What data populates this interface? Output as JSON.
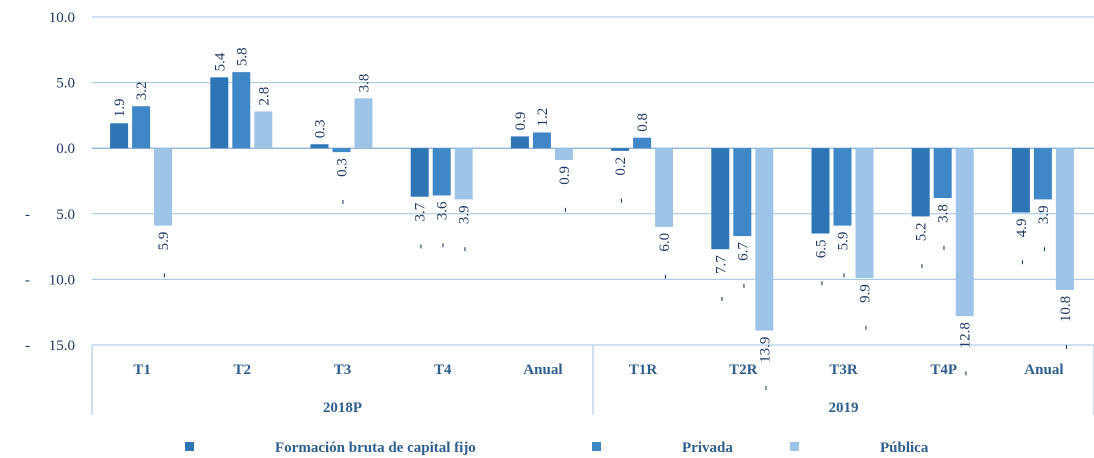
{
  "chart_data": {
    "type": "bar",
    "categories": [
      "T1",
      "T2",
      "T3",
      "T4",
      "Anual",
      "T1R",
      "T2R",
      "T3R",
      "T4P",
      "Anual"
    ],
    "groups": [
      {
        "name": "2018P",
        "size": 5
      },
      {
        "name": "2019",
        "size": 5
      }
    ],
    "series": [
      {
        "name": "Formación bruta de capital fijo",
        "color": "#2e75b6",
        "values": [
          1.9,
          5.4,
          0.3,
          -3.7,
          0.9,
          -0.2,
          -7.7,
          -6.5,
          -5.2,
          -4.9
        ],
        "value_labels": [
          "1.9",
          "5.4",
          "0.3",
          "-      3.7",
          "0.9",
          "-      0.2",
          "-      7.7",
          "-      6.5",
          "-      5.2",
          "-      4.9"
        ]
      },
      {
        "name": "Privada",
        "color": "#3f87c7",
        "values": [
          3.2,
          5.8,
          -0.3,
          -3.6,
          1.2,
          0.8,
          -6.7,
          -5.9,
          -3.8,
          -3.9
        ],
        "value_labels": [
          "3.2",
          "5.8",
          "-      0.3",
          "-      3.6",
          "1.2",
          "0.8",
          "-      6.7",
          "-      5.9",
          "-      3.8",
          "-      3.9"
        ]
      },
      {
        "name": "Pública",
        "color": "#9dc3e6",
        "values": [
          -5.9,
          2.8,
          3.8,
          -3.9,
          -0.9,
          -6.0,
          -13.9,
          -9.9,
          -12.8,
          -10.8
        ],
        "value_labels": [
          "-      5.9",
          "2.8",
          "3.8",
          "-      3.9",
          "-      0.9",
          "-      6.0",
          "-      13.9",
          "-      9.9",
          "-      12.8",
          "-      10.8"
        ]
      }
    ],
    "ylim": [
      -15,
      10
    ],
    "yticks": [
      {
        "value": -15,
        "label": "-     15.0"
      },
      {
        "value": -10,
        "label": "-     10.0"
      },
      {
        "value": -5,
        "label": "-       5.0"
      },
      {
        "value": 0,
        "label": "0.0"
      },
      {
        "value": 5,
        "label": "5.0"
      },
      {
        "value": 10,
        "label": "10.0"
      }
    ],
    "grid": true
  }
}
